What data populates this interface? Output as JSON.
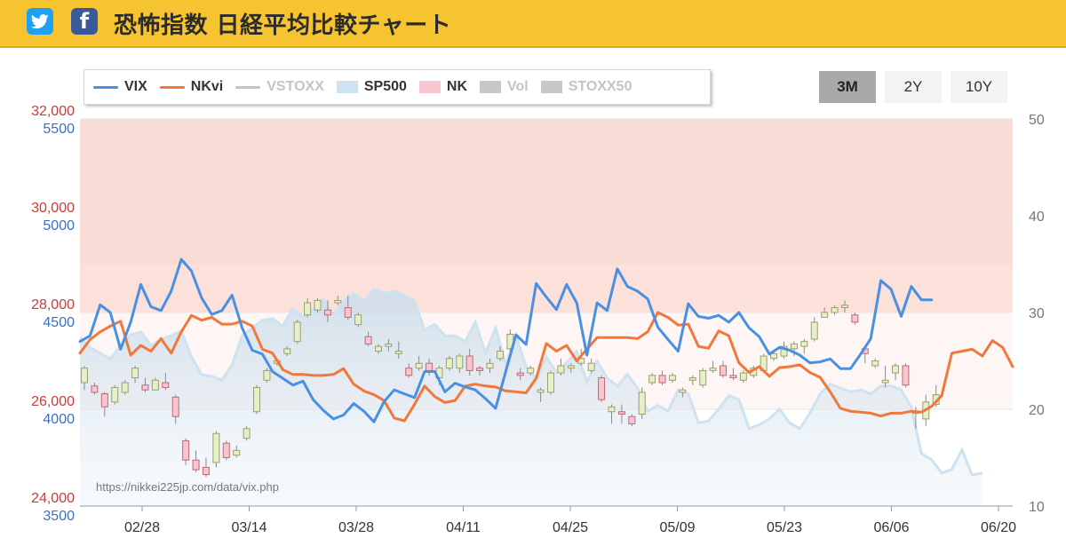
{
  "header": {
    "title": "恐怖指数 日経平均比較チャート",
    "twitter_glyph": "twitter-bird-icon",
    "facebook_glyph": "f"
  },
  "legend": [
    {
      "label": "VIX",
      "color": "#4a90e2",
      "kind": "line",
      "active": true
    },
    {
      "label": "NKvi",
      "color": "#f0783c",
      "kind": "line",
      "active": true
    },
    {
      "label": "VSTOXX",
      "color": "#c4c4c4",
      "kind": "line",
      "active": false
    },
    {
      "label": "SP500",
      "color": "#cfe2f0",
      "kind": "area",
      "active": true
    },
    {
      "label": "NK",
      "color": "#f7c6cf",
      "kind": "candle",
      "active": true
    },
    {
      "label": "Vol",
      "color": "#c8c8c8",
      "kind": "box",
      "active": false
    },
    {
      "label": "STOXX50",
      "color": "#c8c8c8",
      "kind": "box",
      "active": false
    }
  ],
  "range_buttons": [
    {
      "label": "3M",
      "active": true
    },
    {
      "label": "2Y",
      "active": false
    },
    {
      "label": "10Y",
      "active": false
    }
  ],
  "watermark": "https://nikkei225jp.com/data/vix.php",
  "chart_data": {
    "type": "line",
    "x_tick_labels": [
      "02/28",
      "03/14",
      "03/28",
      "04/11",
      "04/25",
      "05/09",
      "05/23",
      "06/06",
      "06/20"
    ],
    "axes": {
      "nk": {
        "ticks": [
          "24,000",
          "26,000",
          "28,000",
          "30,000",
          "32,000"
        ],
        "range": [
          24000,
          32000
        ],
        "color": "#cc3b3b"
      },
      "sp500": {
        "ticks": [
          "3500",
          "4000",
          "4500",
          "5000",
          "5500"
        ],
        "range": [
          3500,
          5500
        ],
        "color": "#3b6fc7"
      },
      "vix": {
        "ticks": [
          "10",
          "20",
          "30",
          "40",
          "50"
        ],
        "range": [
          10,
          50
        ],
        "color": "#777777"
      }
    },
    "bands": [
      {
        "from": 30,
        "to": 50,
        "color": "#f9d6d0",
        "opacity": 0.85
      },
      {
        "from": 30,
        "to": 35,
        "color": "#fde4de",
        "opacity": 0.6
      },
      {
        "from": 20,
        "to": 30,
        "color": "#fdeeea",
        "opacity": 0.5
      }
    ],
    "series": [
      {
        "name": "VIX",
        "axis": "vix",
        "color": "#4a90e2",
        "values": [
          27.0,
          27.6,
          30.8,
          30.0,
          26.2,
          29.0,
          32.9,
          30.6,
          30.2,
          32.2,
          35.5,
          34.3,
          31.5,
          29.8,
          30.2,
          31.8,
          28.4,
          26.1,
          25.7,
          23.9,
          23.2,
          22.5,
          22.9,
          21.0,
          19.9,
          19.0,
          19.4,
          20.6,
          19.8,
          18.7,
          20.8,
          22.0,
          21.6,
          21.2,
          23.9,
          23.9,
          21.8,
          22.7,
          22.3,
          22.0,
          21.1,
          20.1,
          23.9,
          27.7,
          26.7,
          33.0,
          31.6,
          30.3,
          32.9,
          31.0,
          25.6,
          31.0,
          30.2,
          34.5,
          32.7,
          32.2,
          31.4,
          28.5,
          27.2,
          26.0,
          30.9,
          29.6,
          29.4,
          29.7,
          29.0,
          30.0,
          28.4,
          27.5,
          25.7,
          26.4,
          26.1,
          25.6,
          24.8,
          24.9,
          25.2,
          24.2,
          24.2,
          25.7,
          27.3,
          33.3,
          32.4,
          29.6,
          32.7,
          31.3,
          31.3
        ],
        "last_index": 84
      },
      {
        "name": "NKvi",
        "axis": "vix",
        "color": "#f0783c",
        "values": [
          25.8,
          27.2,
          28.0,
          28.6,
          29.1,
          25.6,
          26.6,
          26.0,
          27.3,
          25.8,
          28.0,
          29.7,
          29.2,
          29.5,
          28.8,
          28.8,
          29.1,
          28.6,
          26.2,
          25.8,
          24.1,
          23.6,
          23.6,
          23.5,
          23.5,
          23.6,
          24.2,
          22.6,
          21.9,
          21.5,
          20.9,
          19.1,
          18.8,
          20.5,
          22.4,
          21.3,
          20.7,
          20.9,
          22.4,
          22.6,
          22.4,
          22.3,
          21.9,
          21.8,
          21.7,
          23.2,
          26.8,
          26.0,
          26.6,
          25.0,
          26.2,
          27.4,
          27.4,
          27.4,
          27.4,
          27.3,
          28.0,
          30.0,
          29.5,
          28.7,
          28.8,
          26.5,
          26.3,
          28.1,
          27.6,
          24.8,
          23.8,
          24.4,
          23.4,
          24.3,
          24.4,
          24.6,
          23.8,
          23.3,
          21.8,
          20.1,
          19.8,
          19.7,
          19.6,
          19.3,
          19.6,
          19.6,
          19.8,
          19.7,
          20.3,
          21.4,
          25.8,
          26.0,
          26.2,
          25.5,
          27.1,
          26.4,
          24.4
        ],
        "last_index": 92
      },
      {
        "name": "SP500",
        "axis": "sp500",
        "color": "#cfe2f0",
        "values": [
          4370,
          4320,
          4290,
          4260,
          4330,
          4385,
          4400,
          4330,
          4360,
          4380,
          4405,
          4270,
          4180,
          4170,
          4150,
          4230,
          4380,
          4420,
          4460,
          4470,
          4430,
          4520,
          4480,
          4510,
          4570,
          4490,
          4560,
          4600,
          4560,
          4620,
          4600,
          4610,
          4590,
          4560,
          4410,
          4440,
          4380,
          4380,
          4350,
          4450,
          4290,
          4420,
          4230,
          4380,
          4220,
          4160,
          4270,
          4190,
          4240,
          4300,
          4140,
          4250,
          4160,
          4120,
          4180,
          4110,
          3990,
          4020,
          3990,
          4100,
          4080,
          3930,
          3940,
          4000,
          4070,
          4050,
          3900,
          3920,
          3950,
          4000,
          3930,
          3900,
          3980,
          4080,
          4130,
          4110,
          4090,
          4100,
          4080,
          4120,
          4120,
          4100,
          4010,
          3770,
          3740,
          3670,
          3690,
          3790,
          3660,
          3670
        ],
        "last_index": 89
      },
      {
        "name": "NK",
        "axis": "nk",
        "kind": "candle",
        "rise_color": "#e6f0c8",
        "fall_color": "#f7c6cf",
        "ohlc": [
          [
            26550,
            26900,
            26400,
            26850
          ],
          [
            26480,
            26550,
            26300,
            26350
          ],
          [
            26320,
            26360,
            25850,
            26050
          ],
          [
            26150,
            26500,
            26100,
            26450
          ],
          [
            26350,
            26600,
            26300,
            26550
          ],
          [
            26650,
            26900,
            26550,
            26850
          ],
          [
            26500,
            26650,
            26350,
            26400
          ],
          [
            26400,
            26650,
            26400,
            26600
          ],
          [
            26550,
            26750,
            26400,
            26450
          ],
          [
            26250,
            26300,
            25700,
            25850
          ],
          [
            25350,
            25400,
            24850,
            24950
          ],
          [
            24950,
            25150,
            24700,
            24750
          ],
          [
            24800,
            25000,
            24600,
            24650
          ],
          [
            24900,
            25550,
            24800,
            25500
          ],
          [
            25300,
            25350,
            24950,
            25000
          ],
          [
            25050,
            25250,
            25000,
            25150
          ],
          [
            25400,
            25650,
            25350,
            25600
          ],
          [
            25950,
            26500,
            25900,
            26450
          ],
          [
            26600,
            26850,
            26550,
            26800
          ],
          [
            26950,
            27050,
            26900,
            27000
          ],
          [
            27150,
            27300,
            27100,
            27250
          ],
          [
            27400,
            27850,
            27350,
            27800
          ],
          [
            27950,
            28300,
            27900,
            28200
          ],
          [
            28050,
            28300,
            28000,
            28250
          ],
          [
            28050,
            28250,
            27800,
            27950
          ],
          [
            28200,
            28350,
            28150,
            28250
          ],
          [
            28100,
            28350,
            27850,
            27900
          ],
          [
            27750,
            28000,
            27700,
            27950
          ],
          [
            27500,
            27600,
            27300,
            27350
          ],
          [
            27200,
            27350,
            27150,
            27300
          ],
          [
            27300,
            27450,
            27200,
            27350
          ],
          [
            27150,
            27400,
            27050,
            27200
          ],
          [
            26850,
            26950,
            26650,
            26700
          ],
          [
            26850,
            27100,
            26800,
            26950
          ],
          [
            26950,
            27050,
            26700,
            26800
          ],
          [
            26650,
            26900,
            26500,
            26850
          ],
          [
            26850,
            27100,
            26800,
            27050
          ],
          [
            26850,
            27150,
            26750,
            27100
          ],
          [
            27100,
            27250,
            26700,
            26800
          ],
          [
            26850,
            26900,
            26700,
            26800
          ],
          [
            26850,
            27050,
            26750,
            26950
          ],
          [
            27050,
            27300,
            27000,
            27200
          ],
          [
            27250,
            27650,
            27200,
            27550
          ],
          [
            26750,
            26850,
            26600,
            26700
          ],
          [
            26750,
            26900,
            26700,
            26850
          ],
          [
            26350,
            26450,
            26150,
            26400
          ],
          [
            26350,
            26800,
            26300,
            26750
          ],
          [
            26750,
            27050,
            26700,
            26900
          ],
          [
            26850,
            26950,
            26750,
            26900
          ],
          [
            26950,
            27250,
            26900,
            27050
          ],
          [
            26800,
            27050,
            26750,
            26950
          ],
          [
            26650,
            26700,
            26150,
            26200
          ],
          [
            25950,
            26100,
            25700,
            26050
          ],
          [
            25950,
            26100,
            25700,
            25900
          ],
          [
            25850,
            25900,
            25650,
            25700
          ],
          [
            25900,
            26450,
            25800,
            26350
          ],
          [
            26550,
            26750,
            26500,
            26700
          ],
          [
            26700,
            26800,
            26500,
            26550
          ],
          [
            26600,
            26750,
            26550,
            26700
          ],
          [
            26350,
            26450,
            26250,
            26400
          ],
          [
            26600,
            26700,
            26500,
            26650
          ],
          [
            26500,
            26850,
            26450,
            26800
          ],
          [
            26800,
            27000,
            26750,
            26850
          ],
          [
            26900,
            27000,
            26650,
            26700
          ],
          [
            26700,
            26850,
            26600,
            26650
          ],
          [
            26600,
            26800,
            26550,
            26750
          ],
          [
            26700,
            26900,
            26650,
            26850
          ],
          [
            26800,
            27150,
            26800,
            27100
          ],
          [
            27050,
            27200,
            27000,
            27150
          ],
          [
            27100,
            27400,
            27050,
            27300
          ],
          [
            27250,
            27400,
            27100,
            27350
          ],
          [
            27300,
            27450,
            27150,
            27400
          ],
          [
            27450,
            27900,
            27400,
            27800
          ],
          [
            27900,
            28100,
            27900,
            28000
          ],
          [
            28000,
            28150,
            27950,
            28100
          ],
          [
            28100,
            28250,
            28000,
            28150
          ],
          [
            27950,
            28000,
            27750,
            27800
          ],
          [
            27250,
            27300,
            26950,
            27150
          ],
          [
            26900,
            27050,
            26850,
            27000
          ],
          [
            26550,
            26900,
            26450,
            26600
          ],
          [
            26750,
            26950,
            26600,
            26900
          ],
          [
            26900,
            26950,
            26450,
            26500
          ],
          [
            25950,
            26050,
            25600,
            25950
          ],
          [
            25800,
            26300,
            25650,
            26150
          ],
          [
            26100,
            26500,
            26050,
            26300
          ]
        ]
      }
    ]
  }
}
